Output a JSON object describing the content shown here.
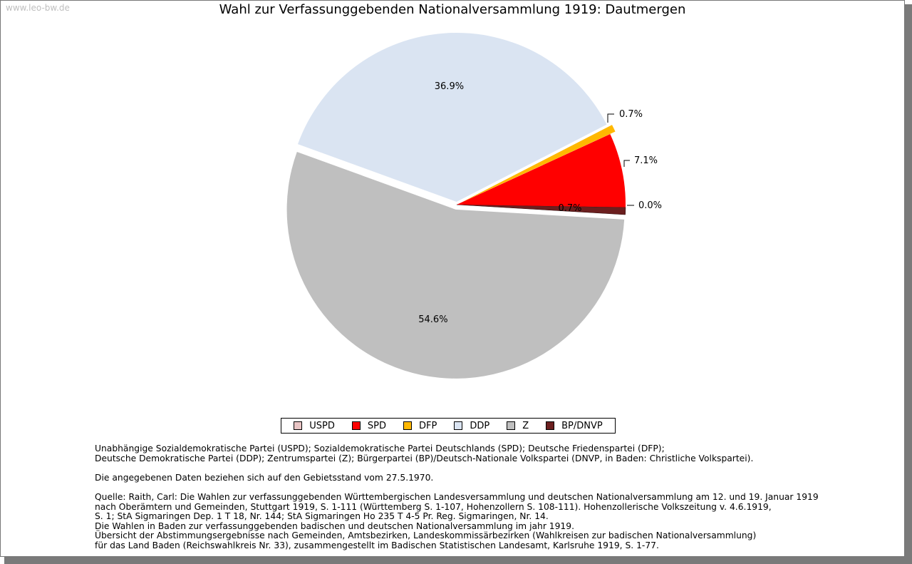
{
  "watermark": "www.leo-bw.de",
  "chart_data": {
    "type": "pie",
    "title": "Wahl zur Verfassunggebenden Nationalversammlung 1919: Dautmergen",
    "slices": [
      {
        "name": "USPD",
        "value": 0.0,
        "label": "0.0%",
        "color": "#e8c4c4"
      },
      {
        "name": "SPD",
        "value": 7.1,
        "label": "7.1%",
        "color": "#ff0000"
      },
      {
        "name": "DFP",
        "value": 0.7,
        "label": "0.7%",
        "color": "#ffb800"
      },
      {
        "name": "DDP",
        "value": 36.9,
        "label": "36.9%",
        "color": "#dae4f2"
      },
      {
        "name": "Z",
        "value": 54.6,
        "label": "54.6%",
        "color": "#bfbfbf"
      },
      {
        "name": "BP/DNVP",
        "value": 0.7,
        "label": "0.7%",
        "color": "#6b1f1f"
      }
    ],
    "legend_placement": "bottom"
  },
  "notes": {
    "parties_line1": "Unabhängige Sozialdemokratische Partei (USPD); Sozialdemokratische Partei Deutschlands (SPD); Deutsche Friedenspartei (DFP);",
    "parties_line2": "Deutsche Demokratische Partei (DDP); Zentrumspartei (Z); Bürgerpartei (BP)/Deutsch-Nationale Volkspartei (DNVP, in Baden: Christliche Volkspartei).",
    "territory": "Die angegebenen Daten beziehen sich auf den Gebietsstand vom 27.5.1970.",
    "source_line1": "Quelle: Raith, Carl: Die Wahlen zur verfassunggebenden Württembergischen Landesversammlung und deutschen Nationalversammlung am 12. und 19. Januar 1919",
    "source_line2": "nach Oberämtern und Gemeinden, Stuttgart 1919, S. 1-111 (Württemberg S. 1-107, Hohenzollern S. 108-111). Hohenzollerische Volkszeitung v. 4.6.1919,",
    "source_line3": "S. 1; StA Sigmaringen Dep. 1 T 18, Nr. 144; StA Sigmaringen Ho 235 T 4-5 Pr. Reg. Sigmaringen, Nr. 14.",
    "source_line4": "Die Wahlen in Baden zur verfassunggebenden badischen und deutschen Nationalversammlung im jahr 1919.",
    "source_line5": "Übersicht der Abstimmungsergebnisse nach Gemeinden, Amtsbezirken, Landeskommissärbezirken (Wahlkreisen zur badischen Nationalversammlung)",
    "source_line6": "für das Land Baden (Reichswahlkreis Nr. 33), zusammengestellt im Badischen Statistischen Landesamt, Karlsruhe 1919, S. 1-77."
  }
}
